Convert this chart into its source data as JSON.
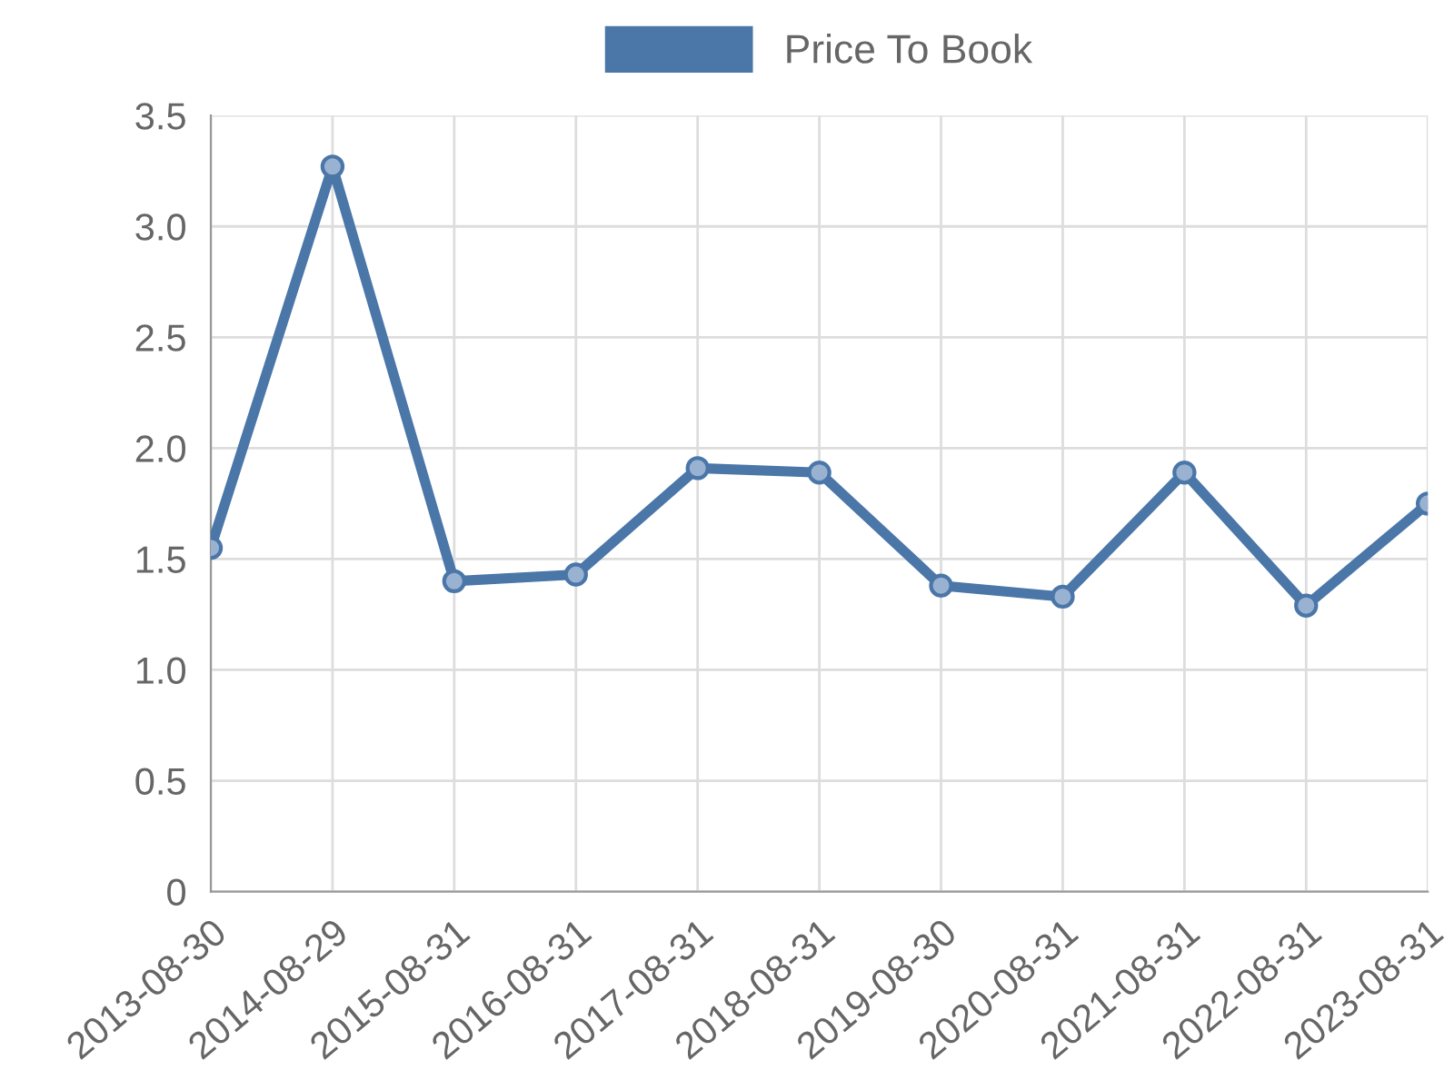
{
  "chart_data": {
    "type": "line",
    "categories": [
      "2013-08-30",
      "2014-08-29",
      "2015-08-31",
      "2016-08-31",
      "2017-08-31",
      "2018-08-31",
      "2019-08-30",
      "2020-08-31",
      "2021-08-31",
      "2022-08-31",
      "2023-08-31"
    ],
    "series": [
      {
        "name": "Price To Book",
        "color": "#4a76a8",
        "values": [
          1.55,
          3.27,
          1.4,
          1.43,
          1.91,
          1.89,
          1.38,
          1.33,
          1.89,
          1.29,
          1.75
        ]
      }
    ],
    "ylim": [
      0,
      3.5
    ],
    "yticks": [
      0,
      0.5,
      {
        "value": 1,
        "label": "1.0"
      },
      1.5,
      {
        "value": 2,
        "label": "2.0"
      },
      2.5,
      {
        "value": 3,
        "label": "3.0"
      },
      3.5
    ],
    "grid": true,
    "legend": "top",
    "marker": "circle",
    "line_style": "solid"
  }
}
